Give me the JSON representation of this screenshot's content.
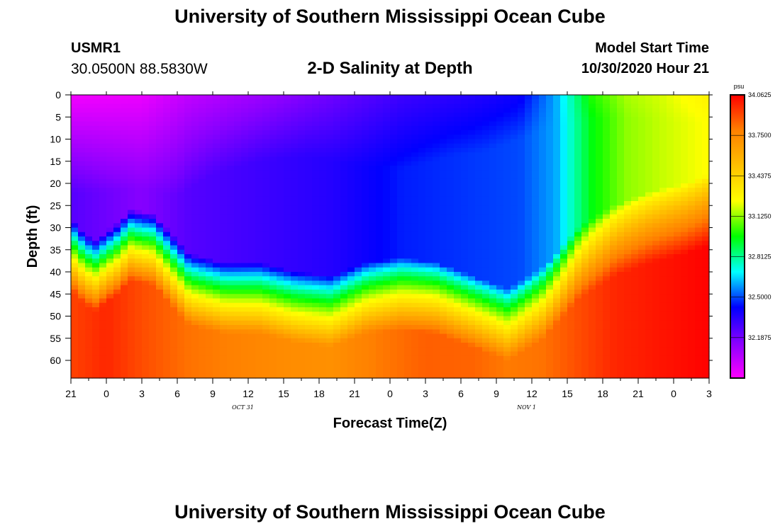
{
  "header": {
    "title": "University of Southern Mississippi Ocean Cube",
    "station": "USMR1",
    "coords": "30.0500N 88.5830W",
    "subtitle": "2-D Salinity at Depth",
    "model_start_label": "Model Start Time",
    "model_start_value": "10/30/2020 Hour 21"
  },
  "footer": {
    "title": "University of Southern Mississippi Ocean Cube"
  },
  "chart_data": {
    "type": "heatmap",
    "title": "2-D Salinity at Depth",
    "xlabel": "Forecast Time(Z)",
    "ylabel": "Depth (ft)",
    "x_ticks": [
      "21",
      "0",
      "3",
      "6",
      "9",
      "12",
      "15",
      "18",
      "21",
      "0",
      "3",
      "6",
      "9",
      "12",
      "15",
      "18",
      "21",
      "0",
      "3"
    ],
    "date_labels": [
      {
        "text": "OCT 31",
        "after_tick": 5
      },
      {
        "text": "NOV 1",
        "after_tick": 13
      }
    ],
    "y_ticks": [
      0,
      5,
      10,
      15,
      20,
      25,
      30,
      35,
      40,
      45,
      50,
      55,
      60
    ],
    "ylim": [
      0,
      64
    ],
    "x_range_hours": [
      0,
      54
    ],
    "colorbar": {
      "unit": "psu",
      "vmin": 31.875,
      "vmax": 34.0625,
      "ticks": [
        "34.0625",
        "33.7500",
        "33.4375",
        "33.1250",
        "32.8125",
        "32.5000",
        "32.1875"
      ],
      "colors": [
        "#ff00ff",
        "#8800ff",
        "#0000ff",
        "#00ffff",
        "#00ff00",
        "#ffff00",
        "#ffc000",
        "#ff8000",
        "#ff0000"
      ]
    },
    "halocline_ft": [
      [
        0,
        28
      ],
      [
        1,
        31
      ],
      [
        2,
        33
      ],
      [
        4,
        29
      ],
      [
        5,
        26
      ],
      [
        7,
        27
      ],
      [
        9,
        33
      ],
      [
        10,
        36
      ],
      [
        13,
        38
      ],
      [
        16,
        38
      ],
      [
        19,
        40
      ],
      [
        22,
        41
      ],
      [
        25,
        38
      ],
      [
        28,
        37
      ],
      [
        31,
        38
      ],
      [
        34,
        41
      ],
      [
        37,
        44
      ],
      [
        40,
        39
      ],
      [
        43,
        30
      ],
      [
        46,
        25
      ],
      [
        49,
        22
      ],
      [
        52,
        20
      ],
      [
        54,
        18
      ]
    ],
    "surface_psu": [
      [
        0,
        31.9
      ],
      [
        6,
        31.92
      ],
      [
        10,
        32.02
      ],
      [
        16,
        32.1
      ],
      [
        22,
        32.2
      ],
      [
        28,
        32.3
      ],
      [
        34,
        32.35
      ],
      [
        38,
        32.4
      ],
      [
        41,
        32.6
      ],
      [
        44,
        33.0
      ],
      [
        47,
        33.15
      ],
      [
        50,
        33.2
      ],
      [
        54,
        33.3
      ]
    ],
    "upper_layer_psu": [
      [
        0,
        32.25
      ],
      [
        6,
        32.15
      ],
      [
        10,
        32.25
      ],
      [
        16,
        32.3
      ],
      [
        22,
        32.35
      ],
      [
        28,
        32.45
      ],
      [
        34,
        32.48
      ],
      [
        38,
        32.5
      ],
      [
        41,
        32.6
      ],
      [
        44,
        32.95
      ],
      [
        47,
        33.12
      ],
      [
        50,
        33.18
      ],
      [
        54,
        33.25
      ]
    ],
    "bottom_psu": [
      [
        0,
        33.92
      ],
      [
        3,
        33.98
      ],
      [
        6,
        33.9
      ],
      [
        10,
        33.82
      ],
      [
        14,
        33.78
      ],
      [
        18,
        33.74
      ],
      [
        22,
        33.72
      ],
      [
        26,
        33.8
      ],
      [
        30,
        33.86
      ],
      [
        34,
        33.85
      ],
      [
        37,
        33.8
      ],
      [
        40,
        33.82
      ],
      [
        43,
        33.9
      ],
      [
        46,
        33.98
      ],
      [
        50,
        34.02
      ],
      [
        54,
        34.06
      ]
    ],
    "blend_ft": [
      [
        0,
        22
      ],
      [
        3,
        22
      ],
      [
        6,
        21
      ],
      [
        9,
        23
      ],
      [
        12,
        18
      ],
      [
        16,
        15
      ],
      [
        20,
        14
      ],
      [
        24,
        16
      ],
      [
        28,
        17
      ],
      [
        32,
        14
      ],
      [
        35,
        13
      ],
      [
        37,
        11
      ],
      [
        40,
        8
      ],
      [
        43,
        6
      ],
      [
        46,
        5
      ],
      [
        50,
        6
      ],
      [
        54,
        6
      ]
    ]
  }
}
